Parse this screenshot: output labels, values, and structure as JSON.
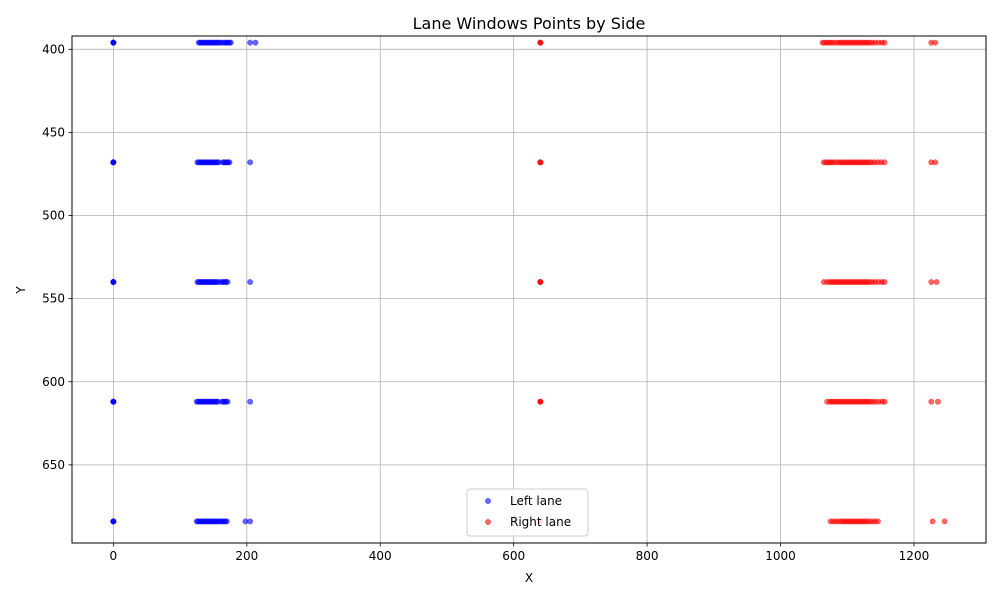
{
  "chart_data": {
    "type": "scatter",
    "title": "Lane Windows Points by Side",
    "xlabel": "X",
    "ylabel": "Y",
    "xlim": [
      -62,
      1308
    ],
    "ylim": [
      392,
      697
    ],
    "y_inverted": true,
    "grid": true,
    "legend_position": "lower-center",
    "x_ticks": [
      0,
      200,
      400,
      600,
      800,
      1000,
      1200
    ],
    "y_ticks": [
      400,
      450,
      500,
      550,
      600,
      650
    ],
    "series": [
      {
        "name": "Left lane",
        "color": "#0000ff",
        "opacity": 0.6,
        "rows": [
          396,
          468,
          540,
          612,
          684
        ],
        "points": [
          [
            0,
            396
          ],
          [
            0,
            396
          ],
          [
            0,
            396
          ],
          [
            0,
            396
          ],
          [
            128,
            396
          ],
          [
            130,
            396
          ],
          [
            132,
            396
          ],
          [
            134,
            396
          ],
          [
            136,
            396
          ],
          [
            138,
            396
          ],
          [
            140,
            396
          ],
          [
            142,
            396
          ],
          [
            144,
            396
          ],
          [
            146,
            396
          ],
          [
            148,
            396
          ],
          [
            150,
            396
          ],
          [
            152,
            396
          ],
          [
            154,
            396
          ],
          [
            156,
            396
          ],
          [
            158,
            396
          ],
          [
            160,
            396
          ],
          [
            163,
            396
          ],
          [
            166,
            396
          ],
          [
            168,
            396
          ],
          [
            170,
            396
          ],
          [
            172,
            396
          ],
          [
            174,
            396
          ],
          [
            176,
            396
          ],
          [
            205,
            396
          ],
          [
            213,
            396
          ],
          [
            0,
            468
          ],
          [
            0,
            468
          ],
          [
            0,
            468
          ],
          [
            0,
            468
          ],
          [
            126,
            468
          ],
          [
            128,
            468
          ],
          [
            130,
            468
          ],
          [
            132,
            468
          ],
          [
            134,
            468
          ],
          [
            136,
            468
          ],
          [
            138,
            468
          ],
          [
            140,
            468
          ],
          [
            142,
            468
          ],
          [
            144,
            468
          ],
          [
            146,
            468
          ],
          [
            148,
            468
          ],
          [
            150,
            468
          ],
          [
            152,
            468
          ],
          [
            154,
            468
          ],
          [
            156,
            468
          ],
          [
            158,
            468
          ],
          [
            164,
            468
          ],
          [
            166,
            468
          ],
          [
            168,
            468
          ],
          [
            170,
            468
          ],
          [
            172,
            468
          ],
          [
            174,
            468
          ],
          [
            205,
            468
          ],
          [
            0,
            540
          ],
          [
            0,
            540
          ],
          [
            0,
            540
          ],
          [
            0,
            540
          ],
          [
            126,
            540
          ],
          [
            128,
            540
          ],
          [
            130,
            540
          ],
          [
            132,
            540
          ],
          [
            134,
            540
          ],
          [
            136,
            540
          ],
          [
            138,
            540
          ],
          [
            140,
            540
          ],
          [
            142,
            540
          ],
          [
            144,
            540
          ],
          [
            146,
            540
          ],
          [
            148,
            540
          ],
          [
            150,
            540
          ],
          [
            152,
            540
          ],
          [
            154,
            540
          ],
          [
            156,
            540
          ],
          [
            160,
            540
          ],
          [
            163,
            540
          ],
          [
            165,
            540
          ],
          [
            167,
            540
          ],
          [
            169,
            540
          ],
          [
            171,
            540
          ],
          [
            205,
            540
          ],
          [
            0,
            612
          ],
          [
            0,
            612
          ],
          [
            0,
            612
          ],
          [
            0,
            612
          ],
          [
            125,
            612
          ],
          [
            127,
            612
          ],
          [
            129,
            612
          ],
          [
            131,
            612
          ],
          [
            133,
            612
          ],
          [
            135,
            612
          ],
          [
            137,
            612
          ],
          [
            139,
            612
          ],
          [
            141,
            612
          ],
          [
            143,
            612
          ],
          [
            145,
            612
          ],
          [
            147,
            612
          ],
          [
            149,
            612
          ],
          [
            151,
            612
          ],
          [
            153,
            612
          ],
          [
            155,
            612
          ],
          [
            157,
            612
          ],
          [
            163,
            612
          ],
          [
            165,
            612
          ],
          [
            167,
            612
          ],
          [
            169,
            612
          ],
          [
            171,
            612
          ],
          [
            205,
            612
          ],
          [
            0,
            684
          ],
          [
            0,
            684
          ],
          [
            0,
            684
          ],
          [
            0,
            684
          ],
          [
            125,
            684
          ],
          [
            127,
            684
          ],
          [
            129,
            684
          ],
          [
            131,
            684
          ],
          [
            133,
            684
          ],
          [
            135,
            684
          ],
          [
            137,
            684
          ],
          [
            139,
            684
          ],
          [
            141,
            684
          ],
          [
            143,
            684
          ],
          [
            145,
            684
          ],
          [
            147,
            684
          ],
          [
            149,
            684
          ],
          [
            151,
            684
          ],
          [
            153,
            684
          ],
          [
            155,
            684
          ],
          [
            157,
            684
          ],
          [
            160,
            684
          ],
          [
            162,
            684
          ],
          [
            164,
            684
          ],
          [
            166,
            684
          ],
          [
            168,
            684
          ],
          [
            170,
            684
          ],
          [
            198,
            684
          ],
          [
            205,
            684
          ]
        ]
      },
      {
        "name": "Right lane",
        "color": "#ff0000",
        "opacity": 0.6,
        "rows": [
          396,
          468,
          540,
          612,
          684
        ],
        "points": [
          [
            640,
            396
          ],
          [
            640,
            396
          ],
          [
            640,
            396
          ],
          [
            1063,
            396
          ],
          [
            1066,
            396
          ],
          [
            1069,
            396
          ],
          [
            1072,
            396
          ],
          [
            1075,
            396
          ],
          [
            1078,
            396
          ],
          [
            1082,
            396
          ],
          [
            1086,
            396
          ],
          [
            1089,
            396
          ],
          [
            1092,
            396
          ],
          [
            1095,
            396
          ],
          [
            1098,
            396
          ],
          [
            1101,
            396
          ],
          [
            1104,
            396
          ],
          [
            1107,
            396
          ],
          [
            1110,
            396
          ],
          [
            1113,
            396
          ],
          [
            1116,
            396
          ],
          [
            1119,
            396
          ],
          [
            1122,
            396
          ],
          [
            1125,
            396
          ],
          [
            1128,
            396
          ],
          [
            1131,
            396
          ],
          [
            1134,
            396
          ],
          [
            1138,
            396
          ],
          [
            1142,
            396
          ],
          [
            1147,
            396
          ],
          [
            1152,
            396
          ],
          [
            1156,
            396
          ],
          [
            1226,
            396
          ],
          [
            1232,
            396
          ],
          [
            640,
            468
          ],
          [
            640,
            468
          ],
          [
            640,
            468
          ],
          [
            1065,
            468
          ],
          [
            1068,
            468
          ],
          [
            1071,
            468
          ],
          [
            1074,
            468
          ],
          [
            1077,
            468
          ],
          [
            1080,
            468
          ],
          [
            1084,
            468
          ],
          [
            1088,
            468
          ],
          [
            1091,
            468
          ],
          [
            1094,
            468
          ],
          [
            1097,
            468
          ],
          [
            1100,
            468
          ],
          [
            1103,
            468
          ],
          [
            1106,
            468
          ],
          [
            1109,
            468
          ],
          [
            1112,
            468
          ],
          [
            1115,
            468
          ],
          [
            1118,
            468
          ],
          [
            1121,
            468
          ],
          [
            1124,
            468
          ],
          [
            1127,
            468
          ],
          [
            1130,
            468
          ],
          [
            1133,
            468
          ],
          [
            1137,
            468
          ],
          [
            1141,
            468
          ],
          [
            1146,
            468
          ],
          [
            1151,
            468
          ],
          [
            1156,
            468
          ],
          [
            1226,
            468
          ],
          [
            1232,
            468
          ],
          [
            640,
            540
          ],
          [
            640,
            540
          ],
          [
            640,
            540
          ],
          [
            1065,
            540
          ],
          [
            1070,
            540
          ],
          [
            1074,
            540
          ],
          [
            1077,
            540
          ],
          [
            1080,
            540
          ],
          [
            1083,
            540
          ],
          [
            1086,
            540
          ],
          [
            1089,
            540
          ],
          [
            1092,
            540
          ],
          [
            1095,
            540
          ],
          [
            1098,
            540
          ],
          [
            1101,
            540
          ],
          [
            1104,
            540
          ],
          [
            1107,
            540
          ],
          [
            1110,
            540
          ],
          [
            1113,
            540
          ],
          [
            1116,
            540
          ],
          [
            1119,
            540
          ],
          [
            1122,
            540
          ],
          [
            1125,
            540
          ],
          [
            1128,
            540
          ],
          [
            1131,
            540
          ],
          [
            1134,
            540
          ],
          [
            1138,
            540
          ],
          [
            1142,
            540
          ],
          [
            1147,
            540
          ],
          [
            1152,
            540
          ],
          [
            1156,
            540
          ],
          [
            1226,
            540
          ],
          [
            1234,
            540
          ],
          [
            640,
            612
          ],
          [
            640,
            612
          ],
          [
            640,
            612
          ],
          [
            1070,
            612
          ],
          [
            1074,
            612
          ],
          [
            1077,
            612
          ],
          [
            1080,
            612
          ],
          [
            1083,
            612
          ],
          [
            1086,
            612
          ],
          [
            1089,
            612
          ],
          [
            1092,
            612
          ],
          [
            1095,
            612
          ],
          [
            1098,
            612
          ],
          [
            1101,
            612
          ],
          [
            1104,
            612
          ],
          [
            1107,
            612
          ],
          [
            1110,
            612
          ],
          [
            1113,
            612
          ],
          [
            1116,
            612
          ],
          [
            1119,
            612
          ],
          [
            1122,
            612
          ],
          [
            1125,
            612
          ],
          [
            1128,
            612
          ],
          [
            1131,
            612
          ],
          [
            1134,
            612
          ],
          [
            1138,
            612
          ],
          [
            1142,
            612
          ],
          [
            1147,
            612
          ],
          [
            1152,
            612
          ],
          [
            1156,
            612
          ],
          [
            1226,
            612
          ],
          [
            1236,
            612
          ],
          [
            640,
            684
          ],
          [
            1075,
            684
          ],
          [
            1079,
            684
          ],
          [
            1083,
            684
          ],
          [
            1087,
            684
          ],
          [
            1091,
            684
          ],
          [
            1094,
            684
          ],
          [
            1097,
            684
          ],
          [
            1100,
            684
          ],
          [
            1103,
            684
          ],
          [
            1106,
            684
          ],
          [
            1109,
            684
          ],
          [
            1112,
            684
          ],
          [
            1115,
            684
          ],
          [
            1118,
            684
          ],
          [
            1121,
            684
          ],
          [
            1124,
            684
          ],
          [
            1127,
            684
          ],
          [
            1130,
            684
          ],
          [
            1134,
            684
          ],
          [
            1138,
            684
          ],
          [
            1142,
            684
          ],
          [
            1146,
            684
          ],
          [
            1228,
            684
          ],
          [
            1246,
            684
          ]
        ]
      }
    ]
  }
}
